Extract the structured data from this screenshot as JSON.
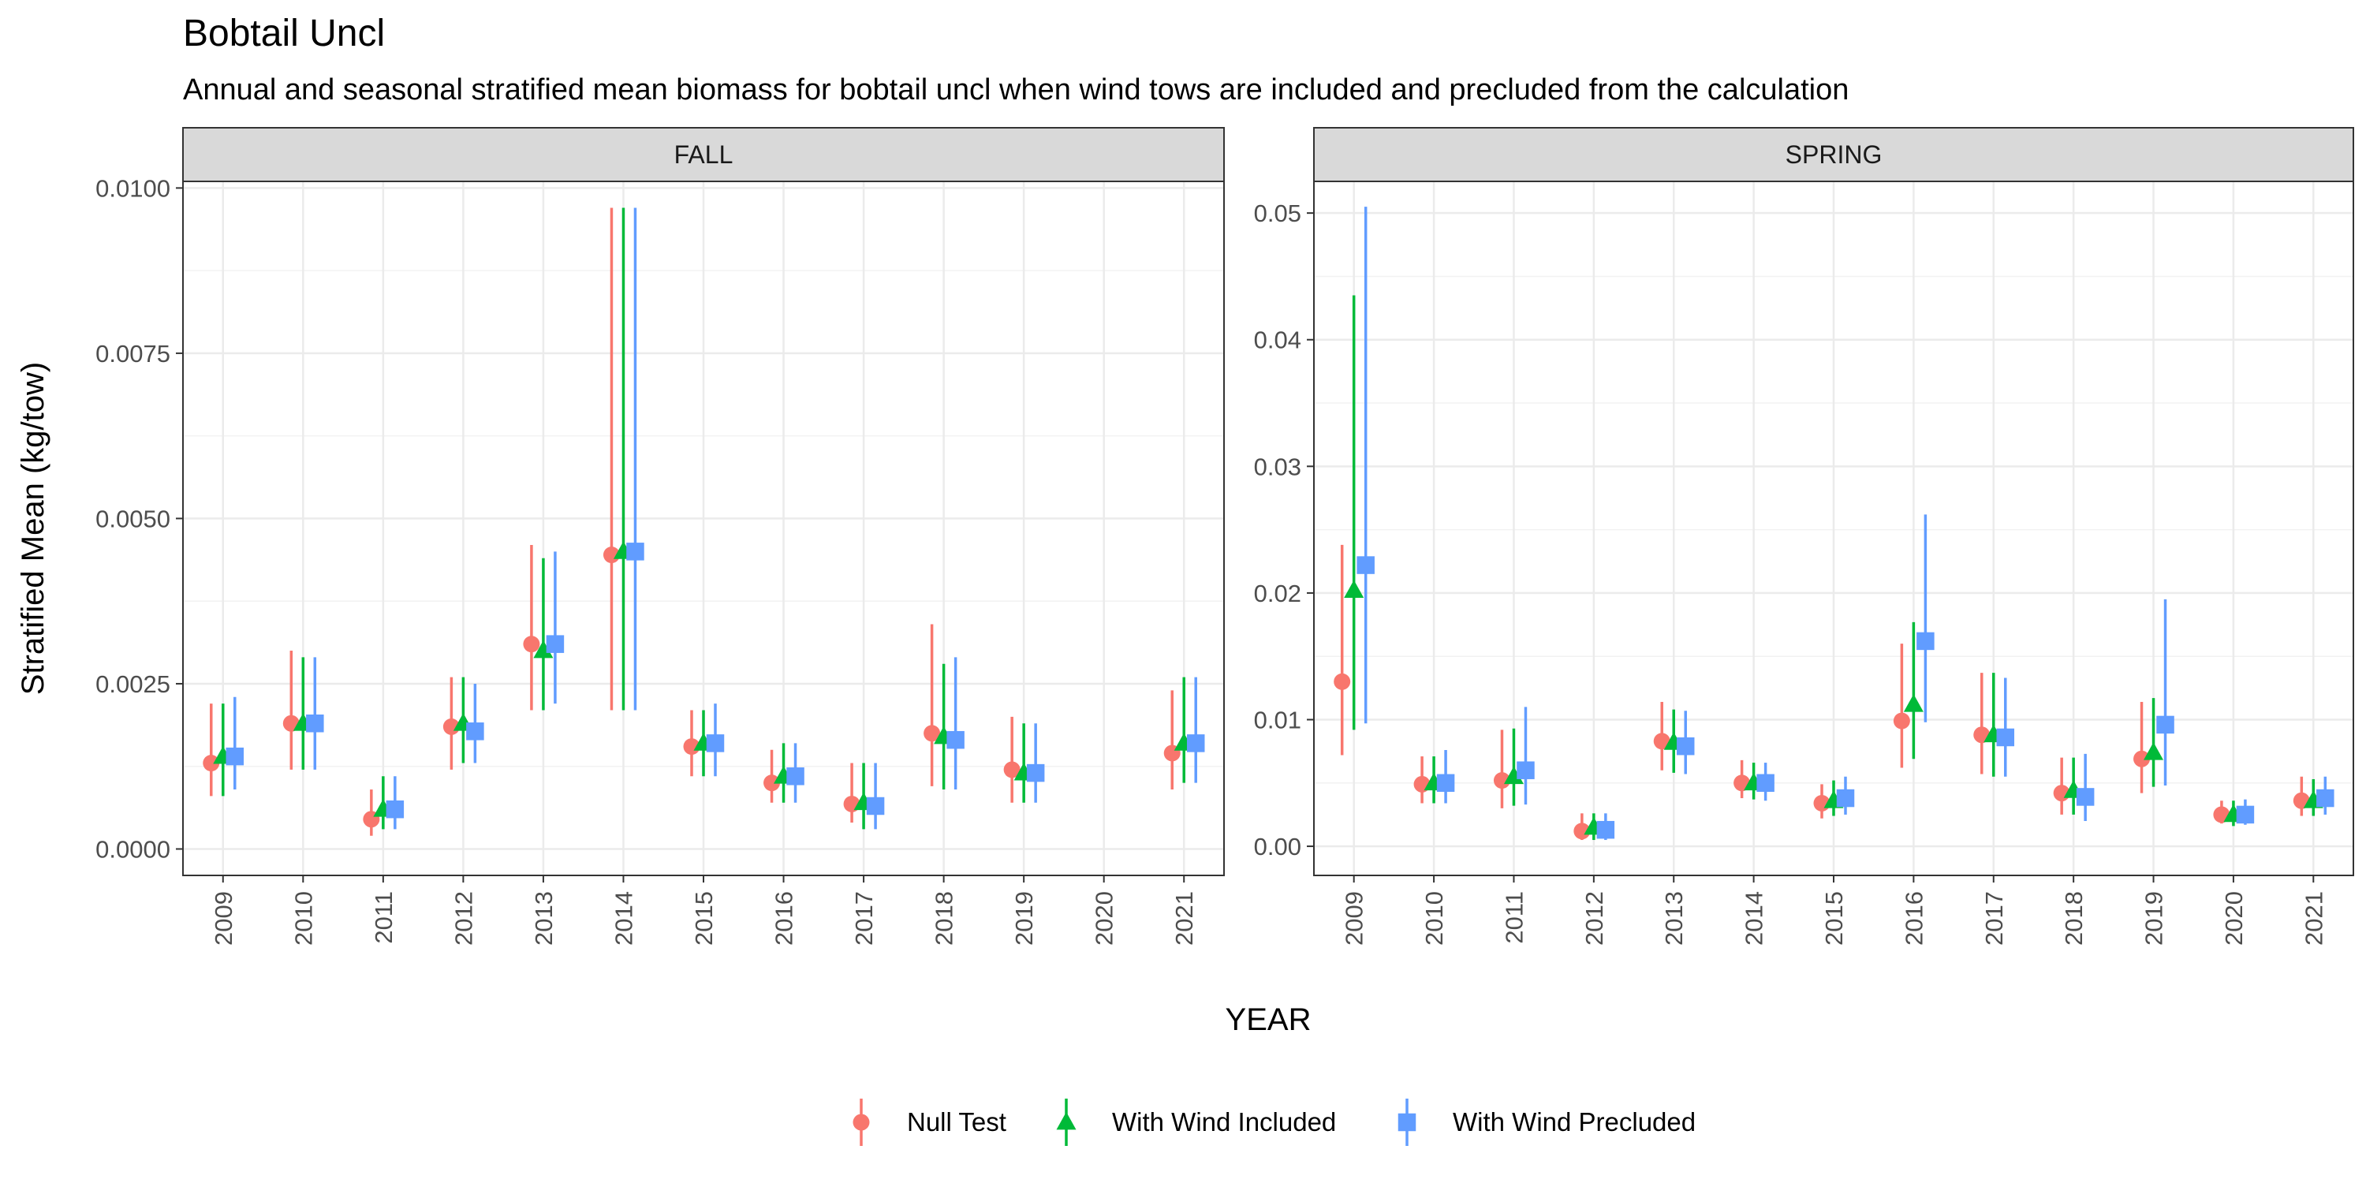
{
  "title": "Bobtail Uncl",
  "subtitle": "Annual and seasonal stratified mean biomass for bobtail uncl when wind tows are included and precluded from the calculation",
  "colors": {
    "null_test": "#F8766D",
    "with_wind_included": "#00BA38",
    "with_wind_precluded": "#619CFF",
    "strip_fill": "#D9D9D9",
    "panel_border": "#333333",
    "grid": "#EBEBEB"
  },
  "chart_data": {
    "type": "scatter",
    "xlabel": "YEAR",
    "ylabel": "Stratified Mean (kg/tow)",
    "legend_position": "bottom",
    "grid": true,
    "legend": [
      {
        "key": "null",
        "label": "Null Test",
        "shape": "circle"
      },
      {
        "key": "incl",
        "label": "With Wind Included",
        "shape": "triangle"
      },
      {
        "key": "prec",
        "label": "With Wind Precluded",
        "shape": "square"
      }
    ],
    "panels": [
      {
        "name": "FALL",
        "ylim": [
          -0.0004,
          0.0101
        ],
        "yticks": [
          0,
          0.0025,
          0.005,
          0.0075,
          0.01
        ],
        "ytick_labels": [
          "0.0000",
          "0.0025",
          "0.0050",
          "0.0075",
          "0.0100"
        ],
        "categories": [
          "2009",
          "2010",
          "2011",
          "2012",
          "2013",
          "2014",
          "2015",
          "2016",
          "2017",
          "2018",
          "2019",
          "2020",
          "2021"
        ],
        "series": [
          {
            "key": "null",
            "name": "Null Test",
            "values": [
              0.0013,
              0.0019,
              0.00045,
              0.00185,
              0.0031,
              0.00445,
              0.00155,
              0.001,
              0.00068,
              0.00175,
              0.0012,
              null,
              0.00145
            ],
            "lower": [
              0.0008,
              0.0012,
              0.0002,
              0.0012,
              0.0021,
              0.0021,
              0.0011,
              0.0007,
              0.0004,
              0.00095,
              0.0007,
              null,
              0.0009
            ],
            "upper": [
              0.0022,
              0.003,
              0.0009,
              0.0026,
              0.0046,
              0.0097,
              0.0021,
              0.0015,
              0.0013,
              0.0034,
              0.002,
              null,
              0.0024
            ]
          },
          {
            "key": "incl",
            "name": "With Wind Included",
            "values": [
              0.0014,
              0.0019,
              0.0006,
              0.0019,
              0.003,
              0.0045,
              0.0016,
              0.0011,
              0.0007,
              0.0017,
              0.00115,
              null,
              0.0016
            ],
            "lower": [
              0.0008,
              0.0012,
              0.0003,
              0.0013,
              0.0021,
              0.0021,
              0.0011,
              0.0007,
              0.0003,
              0.0009,
              0.0007,
              null,
              0.001
            ],
            "upper": [
              0.0022,
              0.0029,
              0.0011,
              0.0026,
              0.0044,
              0.0097,
              0.0021,
              0.0016,
              0.0013,
              0.0028,
              0.0019,
              null,
              0.0026
            ]
          },
          {
            "key": "prec",
            "name": "With Wind Precluded",
            "values": [
              0.0014,
              0.0019,
              0.0006,
              0.00178,
              0.0031,
              0.0045,
              0.0016,
              0.0011,
              0.00065,
              0.00165,
              0.00115,
              null,
              0.0016
            ],
            "lower": [
              0.0009,
              0.0012,
              0.0003,
              0.0013,
              0.0022,
              0.0021,
              0.0011,
              0.0007,
              0.0003,
              0.0009,
              0.0007,
              null,
              0.001
            ],
            "upper": [
              0.0023,
              0.0029,
              0.0011,
              0.0025,
              0.0045,
              0.0097,
              0.0022,
              0.0016,
              0.0013,
              0.0029,
              0.0019,
              null,
              0.0026
            ]
          }
        ]
      },
      {
        "name": "SPRING",
        "ylim": [
          -0.0023,
          0.0525
        ],
        "yticks": [
          0,
          0.01,
          0.02,
          0.03,
          0.04,
          0.05
        ],
        "ytick_labels": [
          "0.00",
          "0.01",
          "0.02",
          "0.03",
          "0.04",
          "0.05"
        ],
        "categories": [
          "2009",
          "2010",
          "2011",
          "2012",
          "2013",
          "2014",
          "2015",
          "2016",
          "2017",
          "2018",
          "2019",
          "2020",
          "2021"
        ],
        "series": [
          {
            "key": "null",
            "name": "Null Test",
            "values": [
              0.013,
              0.0049,
              0.0052,
              0.0012,
              0.0083,
              0.005,
              0.0034,
              0.0099,
              0.0088,
              0.0042,
              0.0069,
              0.0025,
              0.0036
            ],
            "lower": [
              0.0072,
              0.0034,
              0.003,
              0.0005,
              0.006,
              0.0038,
              0.0022,
              0.0062,
              0.0057,
              0.0025,
              0.0042,
              0.0018,
              0.0024
            ],
            "upper": [
              0.0238,
              0.0071,
              0.0092,
              0.0026,
              0.0114,
              0.0068,
              0.0049,
              0.016,
              0.0137,
              0.007,
              0.0114,
              0.0036,
              0.0055
            ]
          },
          {
            "key": "incl",
            "name": "With Wind Included",
            "values": [
              0.0202,
              0.005,
              0.0055,
              0.0015,
              0.0082,
              0.005,
              0.0036,
              0.0112,
              0.0088,
              0.0044,
              0.0074,
              0.0025,
              0.0036
            ],
            "lower": [
              0.0092,
              0.0034,
              0.0032,
              0.0005,
              0.0058,
              0.0037,
              0.0024,
              0.0069,
              0.0055,
              0.0025,
              0.0047,
              0.0016,
              0.0024
            ],
            "upper": [
              0.0435,
              0.0071,
              0.0093,
              0.0026,
              0.0108,
              0.0066,
              0.0052,
              0.0177,
              0.0137,
              0.007,
              0.0117,
              0.0036,
              0.0053
            ]
          },
          {
            "key": "prec",
            "name": "With Wind Precluded",
            "values": [
              0.0222,
              0.005,
              0.006,
              0.0013,
              0.0079,
              0.005,
              0.0038,
              0.0162,
              0.0086,
              0.0039,
              0.0096,
              0.0025,
              0.0038
            ],
            "lower": [
              0.0097,
              0.0034,
              0.0033,
              0.0005,
              0.0057,
              0.0036,
              0.0025,
              0.0098,
              0.0055,
              0.002,
              0.0048,
              0.0017,
              0.0025
            ],
            "upper": [
              0.0505,
              0.0076,
              0.011,
              0.0026,
              0.0107,
              0.0066,
              0.0055,
              0.0262,
              0.0133,
              0.0073,
              0.0195,
              0.0037,
              0.0055
            ]
          }
        ]
      }
    ]
  }
}
